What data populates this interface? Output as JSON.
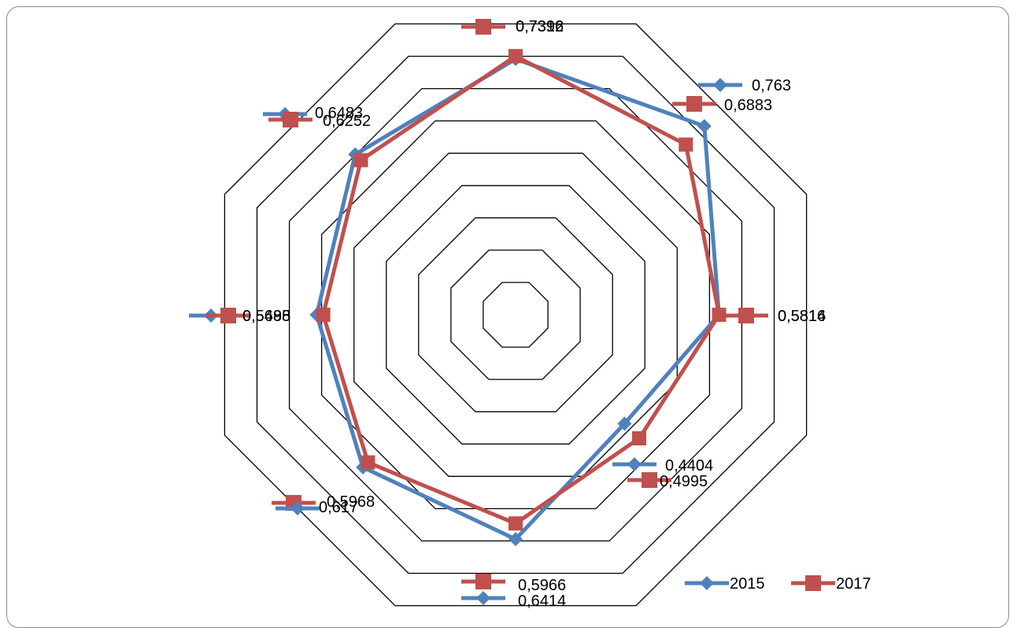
{
  "chart_data": {
    "type": "radar",
    "title": "",
    "axes": [
      "",
      "",
      "",
      "",
      "",
      "",
      "",
      ""
    ],
    "rlim": [
      0,
      0.8
    ],
    "rings": 9,
    "grid": true,
    "legend_position": "bottom-right",
    "series": [
      {
        "name": "2015",
        "color": "#4F81BD",
        "marker": "diamond",
        "values": [
          0.7312,
          0.763,
          0.5814,
          0.4404,
          0.6414,
          0.617,
          0.5685,
          0.6483
        ]
      },
      {
        "name": "2017",
        "color": "#C0504D",
        "marker": "square",
        "values": [
          0.7396,
          0.6883,
          0.5816,
          0.4995,
          0.5966,
          0.5968,
          0.5498,
          0.6252
        ]
      }
    ],
    "value_labels": [
      [
        "0,7312",
        "0,763",
        "0,5814",
        "0,4404",
        "0,6414",
        "0,617",
        "0,5685",
        "0,6483"
      ],
      [
        "0,7396",
        "0,6883",
        "0,5816",
        "0,4995",
        "0,5966",
        "0,5968",
        "0,5498",
        "0,6252"
      ]
    ],
    "legend": [
      "2015",
      "2017"
    ]
  }
}
